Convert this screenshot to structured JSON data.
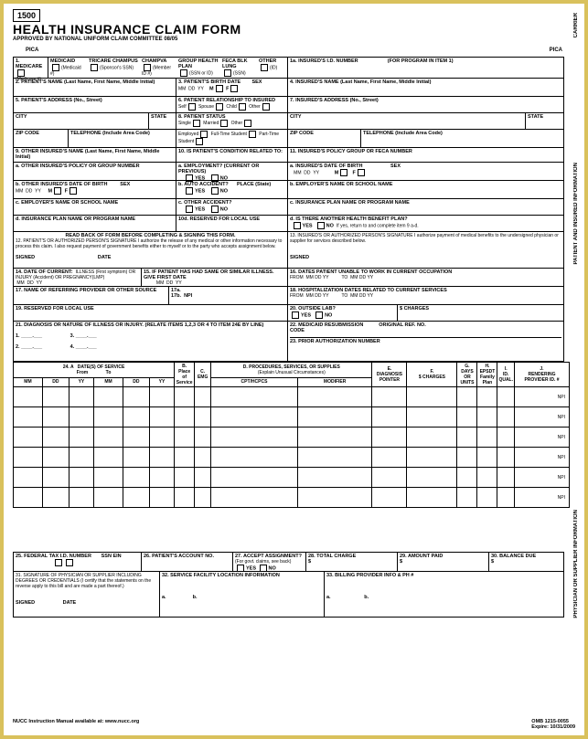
{
  "form_number": "1500",
  "title": "HEALTH INSURANCE CLAIM FORM",
  "subtitle": "APPROVED BY NATIONAL UNIFORM CLAIM COMMITTEE 08/05",
  "side": {
    "carrier": "CARRIER",
    "patient": "PATIENT AND INSURED INFORMATION",
    "physician": "PHYSICIAN OR SUPPLIER INFORMATION"
  },
  "pica": "PICA",
  "r1": {
    "medicare": "MEDICARE",
    "medicare2": "(Medicare #)",
    "medicaid": "MEDICAID",
    "medicaid2": "(Medicaid #)",
    "tricare": "TRICARE CHAMPUS",
    "tricare2": "(Sponsor's SSN)",
    "champva": "CHAMPVA",
    "champva2": "(Member ID #)",
    "group": "GROUP HEALTH PLAN",
    "group2": "(SSN or ID)",
    "feca": "FECA BLK LUNG",
    "feca2": "(SSN)",
    "other": "OTHER",
    "other2": "(ID)",
    "insid": "1a. INSURED'S I.D. NUMBER",
    "prog": "(FOR PROGRAM IN ITEM 1)"
  },
  "r2": {
    "patient": "2. PATIENT'S NAME (Last Name, First Name, Middle Initial)",
    "birth": "3. PATIENT'S BIRTH DATE",
    "sex": "SEX",
    "mm": "MM",
    "dd": "DD",
    "yy": "YY",
    "m": "M",
    "f": "F",
    "insured": "4. INSURED'S NAME (Last Name, First Name, Middle Initial)"
  },
  "r5": {
    "addr": "5. PATIENT'S ADDRESS (No., Street)",
    "rel": "6. PATIENT RELATIONSHIP TO INSURED",
    "self": "Self",
    "spouse": "Spouse",
    "child": "Child",
    "other": "Other",
    "iaddr": "7. INSURED'S ADDRESS (No., Street)"
  },
  "city": {
    "city": "CITY",
    "state": "STATE",
    "status": "8. PATIENT STATUS",
    "single": "Single",
    "married": "Married",
    "other": "Other"
  },
  "zip": {
    "zip": "ZIP CODE",
    "tel": "TELEPHONE (Include Area Code)",
    "emp": "Employed",
    "ft": "Full-Time Student",
    "pt": "Part-Time Student"
  },
  "r9": {
    "other": "9. OTHER INSURED'S NAME (Last Name, First Name, Middle Initial)",
    "cond": "10. IS PATIENT'S CONDITION RELATED TO:",
    "policy": "11. INSURED'S POLICY GROUP OR FECA NUMBER"
  },
  "r9a": {
    "a": "a. OTHER INSURED'S POLICY OR GROUP NUMBER",
    "emp": "a. EMPLOYMENT? (CURRENT OR PREVIOUS)",
    "yes": "YES",
    "no": "NO",
    "dob": "a. INSURED'S DATE OF BIRTH",
    "sex": "SEX"
  },
  "r9b": {
    "b": "b. OTHER INSURED'S DATE OF BIRTH",
    "sex": "SEX",
    "auto": "b. AUTO ACCIDENT?",
    "place": "PLACE (State)",
    "emp": "b. EMPLOYER'S NAME OR SCHOOL NAME"
  },
  "r9c": {
    "c": "c. EMPLOYER'S NAME OR SCHOOL NAME",
    "other": "c. OTHER ACCIDENT?",
    "plan": "c. INSURANCE PLAN NAME OR PROGRAM NAME"
  },
  "r9d": {
    "d": "d. INSURANCE PLAN NAME OR PROGRAM NAME",
    "res": "10d. RESERVED FOR LOCAL USE",
    "another": "d. IS THERE ANOTHER HEALTH BENEFIT PLAN?",
    "ret": "If yes, return to and complete item 9 a-d."
  },
  "r12": {
    "read": "READ BACK OF FORM BEFORE COMPLETING & SIGNING THIS FORM.",
    "sig": "12. PATIENT'S OR AUTHORIZED PERSON'S SIGNATURE I authorize the release of any medical or other information necessary to process this claim. I also request payment of government benefits either to myself or to the party who accepts assignment below.",
    "auth": "13. INSURED'S OR AUTHORIZED PERSON'S SIGNATURE I authorize payment of medical benefits to the undersigned physician or supplier for services described below.",
    "signed": "SIGNED",
    "date": "DATE"
  },
  "r14": {
    "curr": "14. DATE OF CURRENT:",
    "ill": "ILLNESS (First symptom) OR INJURY (Accident) OR PREGNANCY(LMP)",
    "same": "15. IF PATIENT HAS HAD SAME OR SIMILAR ILLNESS. GIVE FIRST DATE",
    "unable": "16. DATES PATIENT UNABLE TO WORK IN CURRENT OCCUPATION",
    "from": "FROM",
    "to": "TO"
  },
  "r17": {
    "ref": "17. NAME OF REFERRING PROVIDER OR OTHER SOURCE",
    "a": "17a.",
    "b": "17b.",
    "npi": "NPI",
    "hosp": "18. HOSPITALIZATION DATES RELATED TO CURRENT SERVICES"
  },
  "r19": {
    "res": "19. RESERVED FOR LOCAL USE",
    "lab": "20. OUTSIDE LAB?",
    "charges": "$ CHARGES",
    "yes": "YES",
    "no": "NO"
  },
  "r21": {
    "diag": "21. DIAGNOSIS OR NATURE OF ILLNESS OR INJURY. (RELATE ITEMS 1,2,3 OR 4 TO ITEM 24E BY LINE)",
    "resub": "22. MEDICAID RESUBMISSION",
    "code": "CODE",
    "orig": "ORIGINAL REF. NO.",
    "n1": "1.",
    "n2": "2.",
    "n3": "3.",
    "n4": "4.",
    "prior": "23. PRIOR AUTHORIZATION NUMBER"
  },
  "r24": {
    "a": "24. A",
    "dates": "DATE(S) OF SERVICE",
    "from": "From",
    "to": "To",
    "mm": "MM",
    "dd": "DD",
    "yy": "YY",
    "b": "B.",
    "place": "Place of Service",
    "c": "C.",
    "emg": "EMG",
    "d": "D.",
    "proc": "PROCEDURES, SERVICES, OR SUPPLIES",
    "expl": "(Explain Unusual Circumstances)",
    "cpt": "CPT/HCPCS",
    "mod": "MODIFIER",
    "e": "E.",
    "diag": "DIAGNOSIS POINTER",
    "f": "F.",
    "charges": "$ CHARGES",
    "g": "G.",
    "days": "DAYS OR UNITS",
    "h": "H.",
    "epsdt": "EPSDT Family Plan",
    "i": "I.",
    "idq": "ID. QUAL.",
    "j": "J.",
    "rend": "RENDERING PROVIDER ID. #",
    "npi": "NPI"
  },
  "r25": {
    "tax": "25. FEDERAL TAX I.D. NUMBER",
    "ssn": "SSN",
    "ein": "EIN",
    "acct": "26. PATIENT'S ACCOUNT NO.",
    "assign": "27. ACCEPT ASSIGNMENT?",
    "gov": "(For govt. claims, see back)",
    "yes": "YES",
    "no": "NO",
    "total": "28. TOTAL CHARGE",
    "paid": "29. AMOUNT PAID",
    "bal": "30. BALANCE DUE",
    "dol": "$"
  },
  "r31": {
    "sig": "31. SIGNATURE OF PHYSICIAN OR SUPPLIER INCLUDING DEGREES OR CREDENTIALS (I certify that the statements on the reverse apply to this bill and are made a part thereof.)",
    "loc": "32. SERVICE FACILITY LOCATION INFORMATION",
    "bill": "33. BILLING PROVIDER INFO & PH #",
    "signed": "SIGNED",
    "date": "DATE",
    "a": "a.",
    "b": "b."
  },
  "footer": {
    "nucc": "NUCC Instruction Manual available at: www.nucc.org",
    "omb": "OMB   1215-0055",
    "exp": "Expire:  10/31/2009"
  }
}
